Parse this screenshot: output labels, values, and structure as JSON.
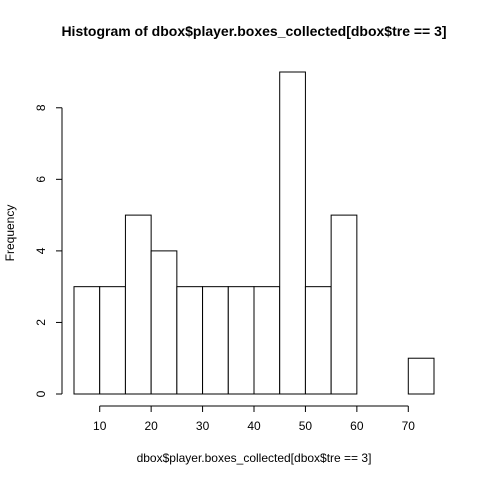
{
  "chart_data": {
    "type": "bar",
    "title": "Histogram of dbox$player.boxes_collected[dbox$tre == 3]",
    "xlabel": "dbox$player.boxes_collected[dbox$tre == 3]",
    "ylabel": "Frequency",
    "bin_edges": [
      5,
      10,
      15,
      20,
      25,
      30,
      35,
      40,
      45,
      50,
      55,
      60,
      65,
      70,
      75
    ],
    "values": [
      3,
      3,
      5,
      4,
      3,
      3,
      3,
      3,
      9,
      3,
      5,
      0,
      0,
      1
    ],
    "xlim": [
      5,
      75
    ],
    "ylim": [
      0,
      9
    ],
    "x_ticks": [
      10,
      20,
      30,
      40,
      50,
      60,
      70
    ],
    "y_ticks": [
      0,
      2,
      4,
      6,
      8
    ],
    "grid": false,
    "colors": {
      "bar_fill": "#ffffff",
      "bar_stroke": "#000000"
    }
  }
}
